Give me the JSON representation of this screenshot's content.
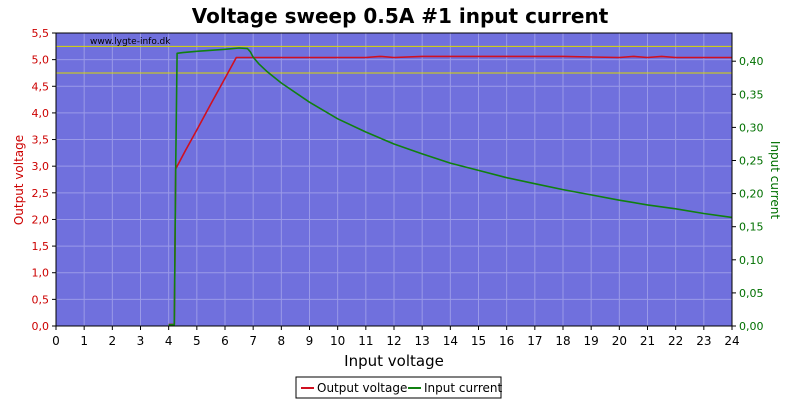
{
  "chart_data": {
    "type": "line",
    "title": "Voltage sweep 0.5A #1 input current",
    "watermark": "www.lygte-info.dk",
    "xlabel": "Input voltage",
    "ylabel_left": "Output voltage",
    "ylabel_right": "Input current",
    "x_ticks": [
      "0",
      "1",
      "2",
      "3",
      "4",
      "5",
      "6",
      "7",
      "8",
      "9",
      "10",
      "11",
      "12",
      "13",
      "14",
      "15",
      "16",
      "17",
      "18",
      "19",
      "20",
      "21",
      "22",
      "23",
      "24"
    ],
    "y_left_ticks": [
      "0,0",
      "0,5",
      "1,0",
      "1,5",
      "2,0",
      "2,5",
      "3,0",
      "3,5",
      "4,0",
      "4,5",
      "5,0",
      "5,5"
    ],
    "y_right_ticks": [
      "0,00",
      "0,05",
      "0,10",
      "0,15",
      "0,20",
      "0,25",
      "0,30",
      "0,35",
      "0,40"
    ],
    "xlim": [
      0,
      24
    ],
    "ylim_left": [
      0,
      5.5
    ],
    "ylim_right": [
      0,
      0.4426
    ],
    "reference_lines_left": [
      4.75,
      5.25
    ],
    "grid": true,
    "legend_position": "bottom-center",
    "colors": {
      "plot_background": "#7070dd",
      "grid": "#9a9ae8",
      "output_voltage": "#d01020",
      "input_current": "#108010",
      "reference_line": "#d8d800",
      "left_axis": "#cc0000",
      "right_axis": "#007000"
    },
    "series": [
      {
        "name": "Output voltage",
        "axis": "left",
        "x": [
          4.0,
          4.1,
          4.2,
          4.25,
          4.3,
          4.6,
          5.0,
          5.5,
          6.0,
          6.4,
          6.7,
          6.8,
          7.0,
          8.0,
          9.0,
          10.0,
          11.0,
          11.5,
          12.0,
          13.0,
          14.0,
          15.0,
          16.0,
          17.0,
          18.0,
          19.0,
          20.0,
          20.5,
          21.0,
          21.5,
          22.0,
          23.0,
          24.0
        ],
        "values": [
          0.03,
          0.03,
          0.03,
          2.95,
          3.0,
          3.3,
          3.68,
          4.17,
          4.65,
          5.04,
          5.04,
          5.04,
          5.04,
          5.04,
          5.04,
          5.04,
          5.04,
          5.06,
          5.04,
          5.06,
          5.06,
          5.06,
          5.06,
          5.06,
          5.06,
          5.05,
          5.04,
          5.06,
          5.04,
          5.06,
          5.04,
          5.04,
          5.04
        ]
      },
      {
        "name": "Input current",
        "axis": "right",
        "x": [
          4.0,
          4.1,
          4.2,
          4.25,
          4.3,
          4.5,
          5.0,
          6.0,
          6.5,
          6.8,
          6.9,
          7.0,
          7.2,
          7.5,
          8.0,
          9.0,
          10.0,
          11.0,
          12.0,
          13.0,
          14.0,
          15.0,
          16.0,
          17.0,
          18.0,
          19.0,
          20.0,
          21.0,
          22.0,
          23.0,
          24.0
        ],
        "values": [
          0.002,
          0.002,
          0.002,
          0.24,
          0.412,
          0.413,
          0.415,
          0.418,
          0.42,
          0.419,
          0.414,
          0.406,
          0.396,
          0.384,
          0.367,
          0.338,
          0.313,
          0.293,
          0.275,
          0.26,
          0.246,
          0.235,
          0.224,
          0.215,
          0.206,
          0.198,
          0.19,
          0.183,
          0.177,
          0.17,
          0.164
        ]
      }
    ]
  }
}
